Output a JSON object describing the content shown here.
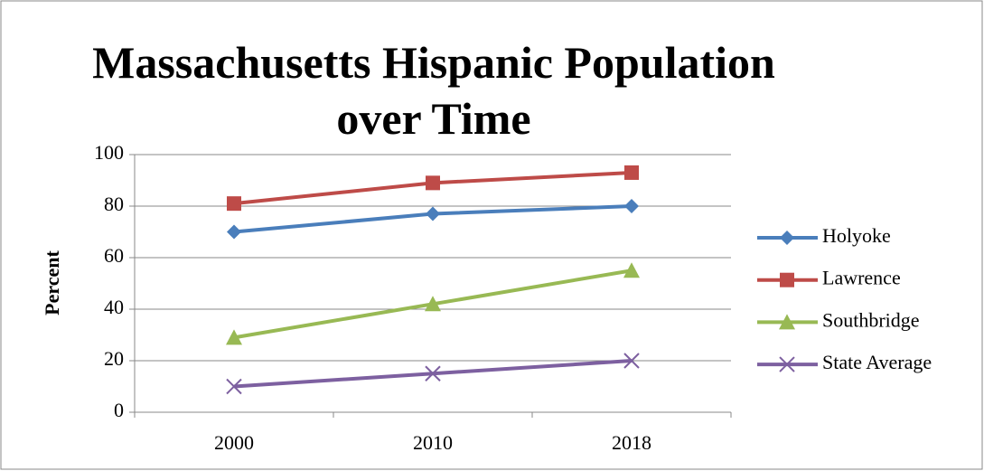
{
  "chart_data": {
    "type": "line",
    "title": "Massachusetts Hispanic Population over Time",
    "y_label": "Percent",
    "categories": [
      "2000",
      "2010",
      "2018"
    ],
    "series": [
      {
        "name": "Holyoke",
        "color": "#4a7ebb",
        "marker": "diamond",
        "values": [
          70,
          77,
          80
        ]
      },
      {
        "name": "Lawrence",
        "color": "#be4b48",
        "marker": "square",
        "values": [
          81,
          89,
          93
        ]
      },
      {
        "name": "Southbridge",
        "color": "#98b954",
        "marker": "triangle",
        "values": [
          29,
          42,
          55
        ]
      },
      {
        "name": "State Average",
        "color": "#7d60a0",
        "marker": "x",
        "values": [
          10,
          15,
          20
        ]
      }
    ],
    "ylim": [
      0,
      100
    ],
    "yticks": [
      0,
      20,
      40,
      60,
      80,
      100
    ],
    "grid": true,
    "legend": "right"
  }
}
